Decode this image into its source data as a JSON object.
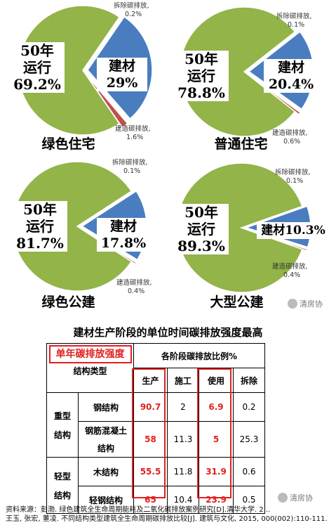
{
  "chart_data": [
    {
      "type": "pie",
      "title": "绿色住宅",
      "slices": [
        {
          "name": "运行",
          "value": 69.2,
          "color": "#92b449"
        },
        {
          "name": "建材",
          "value": 29.0,
          "color": "#4a7dbf"
        },
        {
          "name": "拆除碳排放",
          "value": 0.2,
          "color": "#8db3e2"
        },
        {
          "name": "建造碳排放",
          "value": 1.6,
          "color": "#c0504d"
        }
      ],
      "labels": {
        "op_line1": "50年",
        "op_line2": "运行",
        "op_value": "69.2%",
        "mat_name": "建材",
        "mat_value": "29%",
        "demo_name": "拆除碳排放,",
        "demo_value": "0.2%",
        "cons_name": "建造碳排放,",
        "cons_value": "1.6%"
      }
    },
    {
      "type": "pie",
      "title": "普通住宅",
      "slices": [
        {
          "name": "运行",
          "value": 78.8,
          "color": "#92b449"
        },
        {
          "name": "建材",
          "value": 20.4,
          "color": "#4a7dbf"
        },
        {
          "name": "拆除碳排放",
          "value": 0.1,
          "color": "#8db3e2"
        },
        {
          "name": "建造碳排放",
          "value": 0.6,
          "color": "#c0504d"
        }
      ],
      "labels": {
        "op_line1": "50年",
        "op_line2": "运行",
        "op_value": "78.8%",
        "mat_name": "建材",
        "mat_value": "20.4%",
        "demo_name": "拆除碳排放,",
        "demo_value": "0.1%",
        "cons_name": "建造碳排放,",
        "cons_value": "0.6%"
      }
    },
    {
      "type": "pie",
      "title": "绿色公建",
      "slices": [
        {
          "name": "运行",
          "value": 81.7,
          "color": "#92b449"
        },
        {
          "name": "建材",
          "value": 17.8,
          "color": "#4a7dbf"
        },
        {
          "name": "拆除碳排放",
          "value": 0.1,
          "color": "#8db3e2"
        },
        {
          "name": "建造碳排放",
          "value": 0.4,
          "color": "#c0504d"
        }
      ],
      "labels": {
        "op_line1": "50年",
        "op_line2": "运行",
        "op_value": "81.7%",
        "mat_name": "建材",
        "mat_value": "17.8%",
        "demo_name": "拆除碳排放,",
        "demo_value": "0.1%",
        "cons_name": "建造碳排放,",
        "cons_value": "0.4%"
      }
    },
    {
      "type": "pie",
      "title": "大型公建",
      "slices": [
        {
          "name": "运行",
          "value": 89.3,
          "color": "#92b449"
        },
        {
          "name": "建材",
          "value": 10.3,
          "color": "#4a7dbf"
        },
        {
          "name": "拆除碳排放",
          "value": 0.1,
          "color": "#8db3e2"
        },
        {
          "name": "建造碳排放",
          "value": 0.4,
          "color": "#c0504d"
        }
      ],
      "labels": {
        "op_line1": "50年",
        "op_line2": "运行",
        "op_value": "89.3%",
        "mat_name": "建材",
        "mat_value": "10.3%",
        "demo_name": "拆除碳排放,",
        "demo_value": "0.1%",
        "cons_name": "建造碳排放,",
        "cons_value": "0.4%"
      }
    },
    {
      "type": "table",
      "title": "建材生产阶段的单位时间碳排放强度最高",
      "header": {
        "annual": "单年碳排放强度",
        "struct_type": "结构类型",
        "ratio": "各阶段碳排放比例%",
        "columns": [
          "生产",
          "施工",
          "使用",
          "拆除"
        ]
      },
      "groups": [
        {
          "name_line1": "重型",
          "name_line2": "结构",
          "rows": [
            {
              "type": "钢结构",
              "values": [
                "90.7",
                "2",
                "6.9",
                "0.2"
              ]
            },
            {
              "type_line1": "钢筋混凝土",
              "type_line2": "结构",
              "values": [
                "58",
                "11.3",
                "5",
                "25.3"
              ]
            }
          ]
        },
        {
          "name_line1": "轻型",
          "name_line2": "结构",
          "rows": [
            {
              "type": "木结构",
              "values": [
                "55.5",
                "11.8",
                "31.9",
                "0.6"
              ]
            },
            {
              "type": "轻钢结构",
              "values": [
                "65",
                "10.4",
                "23.9",
                "0.5"
              ]
            }
          ]
        }
      ]
    }
  ],
  "watermarks": {
    "mid": "清房协",
    "table": "清房协"
  },
  "source": {
    "line1": "资料来源：彭渤. 绿色建筑全生命周期能耗及二氧化碳排放案例研究[D].清华大学. 2...",
    "line2": "王玉, 张宏, 董凌. 不同结构类型建筑全生命周期碳排放比较[J]. 建筑与文化, 2015, 000(002):110-111."
  }
}
